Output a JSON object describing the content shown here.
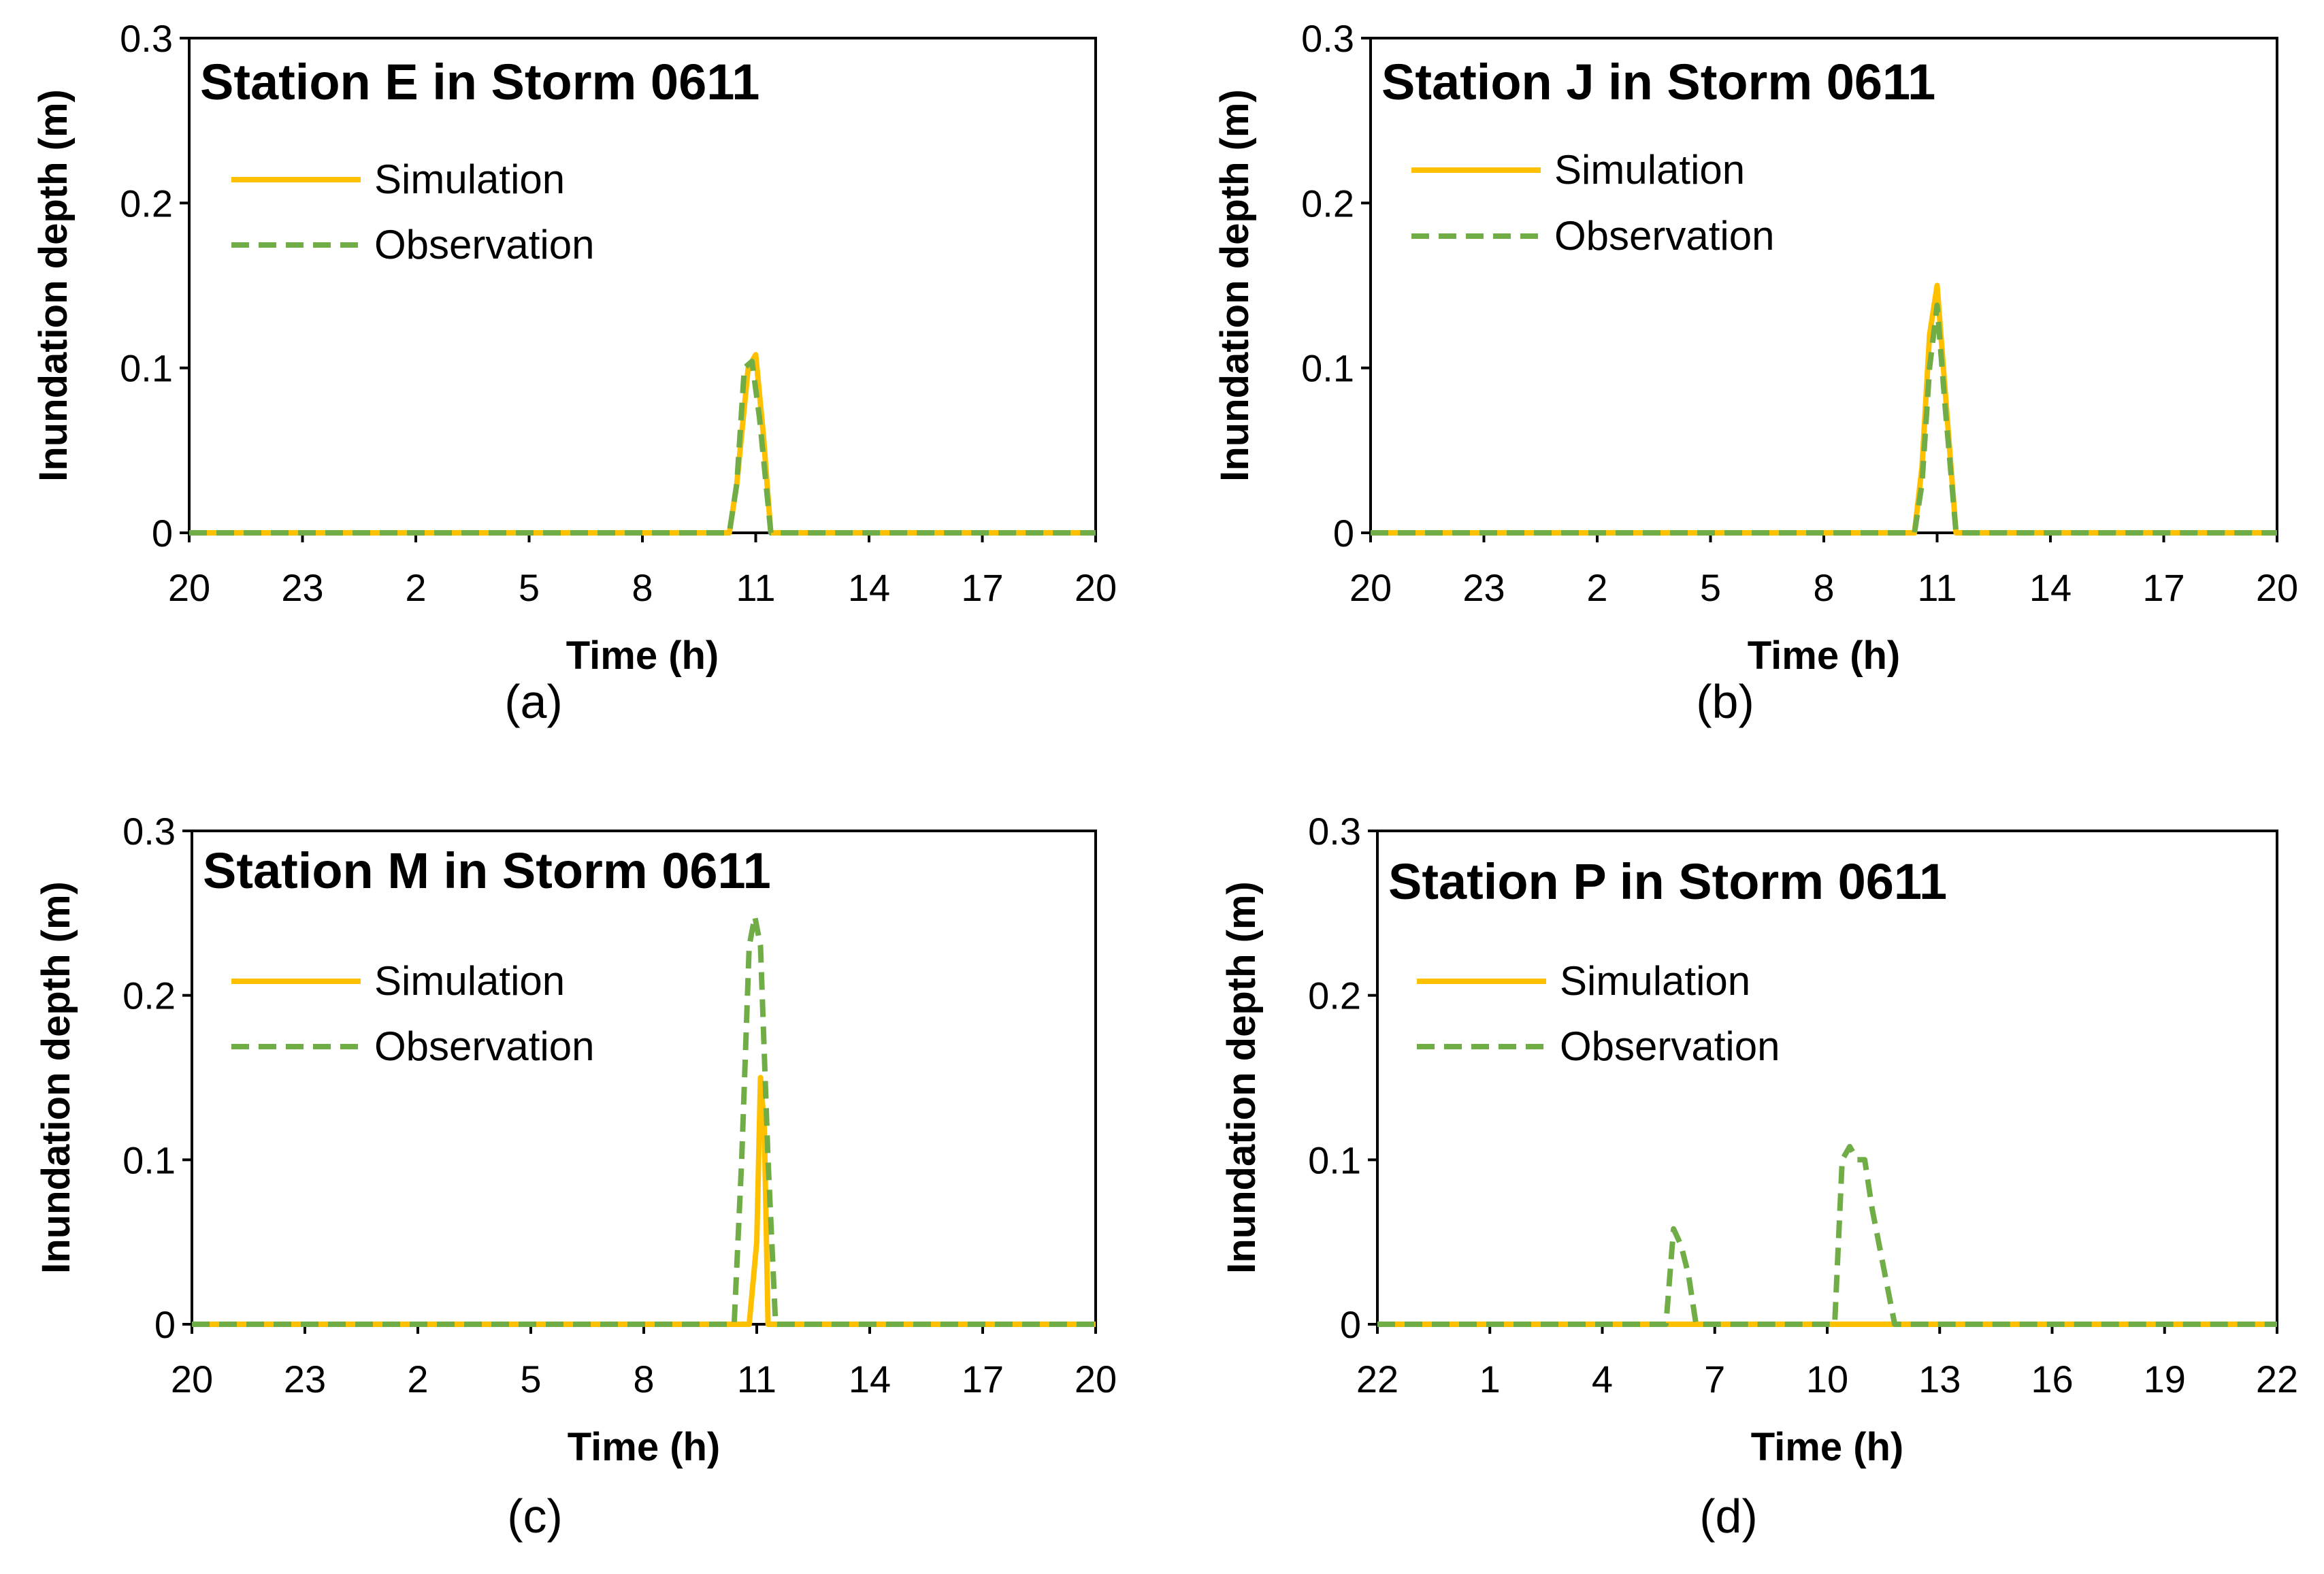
{
  "figure": {
    "caption_note": ""
  },
  "colors": {
    "simulation": "#FFC000",
    "observation": "#70AD47",
    "axis": "#000000"
  },
  "chart_data": [
    {
      "type": "line",
      "title": "Station E in Storm 0611",
      "caption": "(a)",
      "xlabel": "Time (h)",
      "ylabel": "Inundation depth (m)",
      "xlim": [
        0,
        24
      ],
      "ylim": [
        0,
        0.3
      ],
      "yticks": [
        0,
        0.1,
        0.2,
        0.3
      ],
      "yticklabels": [
        "0",
        "0.1",
        "0.2",
        "0.3"
      ],
      "xticks": [
        0,
        3,
        6,
        9,
        12,
        15,
        18,
        21,
        24
      ],
      "xticklabels": [
        "20",
        "23",
        "2",
        "5",
        "8",
        "11",
        "14",
        "17",
        "20"
      ],
      "legend": [
        "Simulation",
        "Observation"
      ],
      "series": [
        {
          "name": "Simulation",
          "x": [
            0,
            14.3,
            14.5,
            14.8,
            15.0,
            15.2,
            15.4,
            24
          ],
          "y": [
            0,
            0,
            0.03,
            0.1,
            0.108,
            0.06,
            0,
            0
          ]
        },
        {
          "name": "Observation",
          "x": [
            0,
            14.3,
            14.5,
            14.7,
            14.9,
            15.1,
            15.4,
            24
          ],
          "y": [
            0,
            0,
            0.03,
            0.1,
            0.104,
            0.07,
            0,
            0
          ]
        }
      ]
    },
    {
      "type": "line",
      "title": "Station J in Storm 0611",
      "caption": "(b)",
      "xlabel": "Time (h)",
      "ylabel": "Inundation depth (m)",
      "xlim": [
        0,
        24
      ],
      "ylim": [
        0,
        0.3
      ],
      "yticks": [
        0,
        0.1,
        0.2,
        0.3
      ],
      "yticklabels": [
        "0",
        "0.1",
        "0.2",
        "0.3"
      ],
      "xticks": [
        0,
        3,
        6,
        9,
        12,
        15,
        18,
        21,
        24
      ],
      "xticklabels": [
        "20",
        "23",
        "2",
        "5",
        "8",
        "11",
        "14",
        "17",
        "20"
      ],
      "legend": [
        "Simulation",
        "Observation"
      ],
      "series": [
        {
          "name": "Simulation",
          "x": [
            0,
            14.4,
            14.6,
            14.8,
            15.0,
            15.2,
            15.5,
            24
          ],
          "y": [
            0,
            0,
            0.04,
            0.12,
            0.15,
            0.09,
            0,
            0
          ]
        },
        {
          "name": "Observation",
          "x": [
            0,
            14.4,
            14.6,
            14.8,
            15.0,
            15.2,
            15.5,
            24
          ],
          "y": [
            0,
            0,
            0.03,
            0.1,
            0.138,
            0.08,
            0,
            0
          ]
        }
      ]
    },
    {
      "type": "line",
      "title": "Station M in Storm 0611",
      "caption": "(c)",
      "xlabel": "Time (h)",
      "ylabel": "Inundation depth (m)",
      "xlim": [
        0,
        24
      ],
      "ylim": [
        0,
        0.3
      ],
      "yticks": [
        0,
        0.1,
        0.2,
        0.3
      ],
      "yticklabels": [
        "0",
        "0.1",
        "0.2",
        "0.3"
      ],
      "xticks": [
        0,
        3,
        6,
        9,
        12,
        15,
        18,
        21,
        24
      ],
      "xticklabels": [
        "20",
        "23",
        "2",
        "5",
        "8",
        "11",
        "14",
        "17",
        "20"
      ],
      "legend": [
        "Simulation",
        "Observation"
      ],
      "series": [
        {
          "name": "Simulation",
          "x": [
            0,
            14.8,
            15.0,
            15.1,
            15.2,
            15.3,
            24
          ],
          "y": [
            0,
            0,
            0.05,
            0.15,
            0.12,
            0,
            0
          ]
        },
        {
          "name": "Observation",
          "x": [
            0,
            14.4,
            14.6,
            14.8,
            14.95,
            15.1,
            15.3,
            15.5,
            24
          ],
          "y": [
            0,
            0,
            0.1,
            0.23,
            0.248,
            0.23,
            0.1,
            0,
            0
          ]
        }
      ]
    },
    {
      "type": "line",
      "title": "Station P in Storm 0611",
      "caption": "(d)",
      "xlabel": "Time (h)",
      "ylabel": "Inundation depth (m)",
      "xlim": [
        0,
        24
      ],
      "ylim": [
        0,
        0.3
      ],
      "yticks": [
        0,
        0.1,
        0.2,
        0.3
      ],
      "yticklabels": [
        "0",
        "0.1",
        "0.2",
        "0.3"
      ],
      "xticks": [
        0,
        3,
        6,
        9,
        12,
        15,
        18,
        21,
        24
      ],
      "xticklabels": [
        "22",
        "1",
        "4",
        "7",
        "10",
        "13",
        "16",
        "19",
        "22"
      ],
      "legend": [
        "Simulation",
        "Observation"
      ],
      "series": [
        {
          "name": "Simulation",
          "x": [
            0,
            24
          ],
          "y": [
            0,
            0
          ]
        },
        {
          "name": "Observation",
          "x": [
            0,
            7.7,
            7.9,
            8.1,
            8.3,
            8.5,
            12.2,
            12.4,
            12.6,
            12.8,
            13.0,
            13.2,
            13.5,
            13.8,
            24
          ],
          "y": [
            0,
            0,
            0.058,
            0.048,
            0.03,
            0,
            0,
            0.1,
            0.108,
            0.1,
            0.1,
            0.07,
            0.035,
            0,
            0
          ]
        }
      ]
    }
  ]
}
